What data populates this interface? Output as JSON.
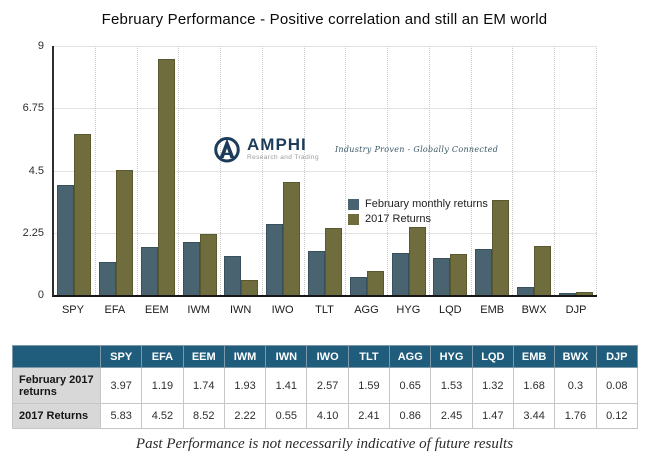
{
  "title": "February Performance - Positive correlation and still an EM world",
  "logo": {
    "name": "AMPHI",
    "subtitle": "Research and Trading",
    "tagline": "Industry Proven - Globally Connected",
    "color": "#1d3c59"
  },
  "chart_data": {
    "type": "bar",
    "categories": [
      "SPY",
      "EFA",
      "EEM",
      "IWM",
      "IWN",
      "IWO",
      "TLT",
      "AGG",
      "HYG",
      "LQD",
      "EMB",
      "BWX",
      "DJP"
    ],
    "series": [
      {
        "name": "February monthly returns",
        "color": "#4a6370",
        "border": "#38505c",
        "values": [
          3.97,
          1.19,
          1.74,
          1.93,
          1.41,
          2.57,
          1.59,
          0.65,
          1.53,
          1.32,
          1.68,
          0.3,
          0.08
        ]
      },
      {
        "name": "2017 Returns",
        "color": "#6f6c3d",
        "border": "#5a582f",
        "values": [
          5.83,
          4.52,
          8.52,
          2.22,
          0.55,
          4.1,
          2.41,
          0.86,
          2.45,
          1.47,
          3.44,
          1.76,
          0.12
        ]
      }
    ],
    "title": "February Performance - Positive correlation and still an EM world",
    "xlabel": "",
    "ylabel": "",
    "ylim": [
      0,
      9
    ],
    "yticks": [
      0,
      2.25,
      4.5,
      6.75,
      9
    ],
    "grid": true,
    "legend_position": "middle-right"
  },
  "table": {
    "corner_label": "",
    "columns": [
      "SPY",
      "EFA",
      "EEM",
      "IWM",
      "IWN",
      "IWO",
      "TLT",
      "AGG",
      "HYG",
      "LQD",
      "EMB",
      "BWX",
      "DJP"
    ],
    "rows": [
      {
        "label": "February 2017 returns",
        "values": [
          "3.97",
          "1.19",
          "1.74",
          "1.93",
          "1.41",
          "2.57",
          "1.59",
          "0.65",
          "1.53",
          "1.32",
          "1.68",
          "0.3",
          "0.08"
        ]
      },
      {
        "label": "2017 Returns",
        "values": [
          "5.83",
          "4.52",
          "8.52",
          "2.22",
          "0.55",
          "4.10",
          "2.41",
          "0.86",
          "2.45",
          "1.47",
          "3.44",
          "1.76",
          "0.12"
        ]
      }
    ]
  },
  "caption": "Past Performance is not necessarily indicative of future results",
  "colors": {
    "table_header_bg": "#205d7d",
    "table_label_bg": "#d8d8d8",
    "axis": "#2e2e2e",
    "gridline": "#e3e3e3"
  }
}
